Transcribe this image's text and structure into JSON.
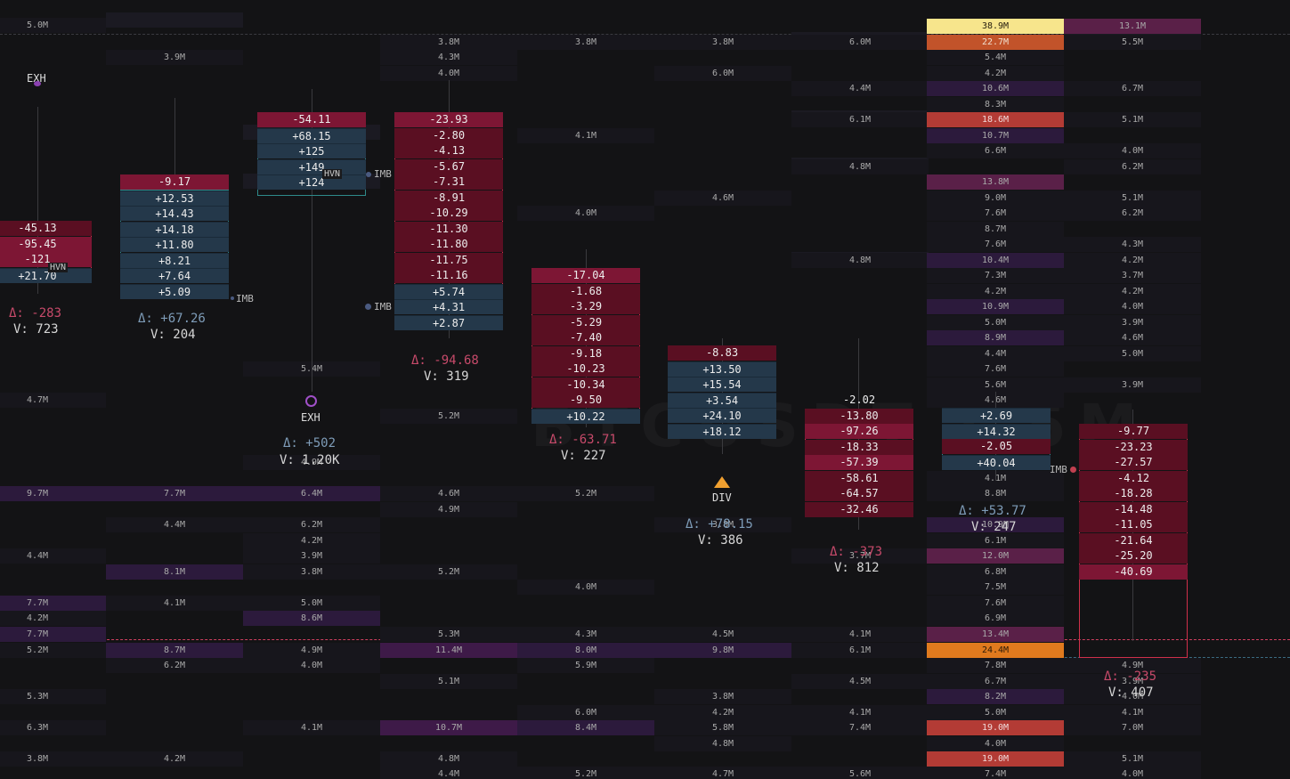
{
  "watermark": "BTCUSDT · 5M",
  "colors": {
    "background": "#131315",
    "bid": "#25384a",
    "ask_strong": "#7a1430",
    "ask": "#5e1020",
    "delta_pos": "#7e9cb8",
    "delta_neg": "#c74a6a",
    "heat_low": "#1e1a2a",
    "heat_mid": "#3d1f52",
    "heat_high": "#c2452a",
    "heat_max": "#f7e58c"
  },
  "heatmap": [
    [
      "5.0M",
      "",
      ""
    ],
    [
      "3.9M",
      "",
      ""
    ],
    [
      "3.8M 4.3M 4.0M",
      "3.8M",
      "3.8M"
    ]
  ],
  "heat_levels": {
    "col0": [
      [
        "5.0M",
        28,
        "n"
      ],
      [
        "4.7M",
        449,
        "n"
      ],
      [
        "9.7M",
        554,
        "p"
      ],
      [
        "4.4M",
        624,
        "n"
      ],
      [
        "7.7M",
        677,
        "p"
      ],
      [
        "4.2M",
        694,
        "n"
      ],
      [
        "7.7M",
        712,
        "p"
      ],
      [
        "5.2M",
        730,
        "n"
      ],
      [
        "5.3M",
        782,
        "n"
      ],
      [
        "6.3M",
        817,
        "n"
      ],
      [
        "3.8M",
        852,
        "n"
      ]
    ],
    "col1": [
      [
        "3.9M",
        64,
        "n"
      ],
      [
        "7.7M",
        554,
        "p"
      ],
      [
        "4.4M",
        589,
        "n"
      ],
      [
        "8.1M",
        642,
        "p"
      ],
      [
        "4.1M",
        677,
        "n"
      ],
      [
        "8.7M",
        730,
        "p"
      ],
      [
        "6.2M",
        747,
        "n"
      ],
      [
        "4.2M",
        852,
        "n"
      ]
    ],
    "col2": [
      [
        "5.4M",
        414,
        "n"
      ],
      [
        "4.9M",
        519,
        "n"
      ],
      [
        "6.4M",
        554,
        "p"
      ],
      [
        "6.2M",
        589,
        "n"
      ],
      [
        "4.2M",
        607,
        "n"
      ],
      [
        "3.9M",
        624,
        "n"
      ],
      [
        "3.8M",
        642,
        "n"
      ],
      [
        "5.0M",
        677,
        "n"
      ],
      [
        "8.6M",
        694,
        "p"
      ],
      [
        "4.9M",
        730,
        "n"
      ],
      [
        "4.0M",
        747,
        "n"
      ],
      [
        "4.1M",
        817,
        "n"
      ]
    ],
    "col3": [
      [
        "3.8M",
        47,
        "n"
      ],
      [
        "4.3M",
        64,
        "n"
      ],
      [
        "4.0M",
        82,
        "n"
      ],
      [
        "5.2M",
        467,
        "n"
      ],
      [
        "4.6M",
        554,
        "n"
      ],
      [
        "4.9M",
        572,
        "n"
      ],
      [
        "5.2M",
        642,
        "n"
      ],
      [
        "5.3M",
        712,
        "n"
      ],
      [
        "11.4M",
        730,
        "p2"
      ],
      [
        "5.1M",
        765,
        "n"
      ],
      [
        "10.7M",
        817,
        "p2"
      ],
      [
        "4.8M",
        852,
        "n"
      ],
      [
        "4.4M",
        869,
        "n"
      ]
    ],
    "col4": [
      [
        "3.8M",
        47,
        "n"
      ],
      [
        "4.1M",
        152,
        "n"
      ],
      [
        "4.0M",
        239,
        "n"
      ],
      [
        "5.2M",
        554,
        "n"
      ],
      [
        "4.0M",
        659,
        "n"
      ],
      [
        "4.3M",
        712,
        "n"
      ],
      [
        "8.0M",
        730,
        "p"
      ],
      [
        "5.9M",
        747,
        "n"
      ],
      [
        "6.0M",
        800,
        "n"
      ],
      [
        "8.4M",
        817,
        "p"
      ],
      [
        "5.2M",
        869,
        "n"
      ]
    ],
    "col5": [
      [
        "3.8M",
        47,
        "n"
      ],
      [
        "6.0M",
        82,
        "n"
      ],
      [
        "4.6M",
        222,
        "n"
      ],
      [
        "3.8M",
        589,
        "n"
      ],
      [
        "4.5M",
        712,
        "n"
      ],
      [
        "9.8M",
        730,
        "p"
      ],
      [
        "3.8M",
        782,
        "n"
      ],
      [
        "4.2M",
        800,
        "n"
      ],
      [
        "5.8M",
        817,
        "n"
      ],
      [
        "4.8M",
        835,
        "n"
      ],
      [
        "4.7M",
        869,
        "n"
      ]
    ],
    "col6": [
      [
        "6.0M",
        47,
        "n"
      ],
      [
        "4.4M",
        99,
        "n"
      ],
      [
        "6.1M",
        134,
        "n"
      ],
      [
        "4.8M",
        187,
        "n"
      ],
      [
        "4.8M",
        292,
        "n"
      ],
      [
        "3.7M",
        624,
        "n"
      ],
      [
        "4.1M",
        712,
        "n"
      ],
      [
        "6.1M",
        730,
        "n"
      ],
      [
        "4.5M",
        765,
        "n"
      ],
      [
        "4.1M",
        800,
        "n"
      ],
      [
        "7.4M",
        817,
        "n"
      ],
      [
        "5.6M",
        869,
        "n"
      ]
    ],
    "col7": [
      [
        "38.9M",
        29,
        "max"
      ],
      [
        "22.7M",
        47,
        "hot"
      ],
      [
        "5.4M",
        64,
        "n"
      ],
      [
        "4.2M",
        82,
        "n"
      ],
      [
        "10.6M",
        99,
        "p"
      ],
      [
        "8.3M",
        117,
        "n"
      ],
      [
        "18.6M",
        134,
        "hot2"
      ],
      [
        "10.7M",
        152,
        "p"
      ],
      [
        "6.6M",
        169,
        "n"
      ],
      [
        "13.8M",
        204,
        "p3"
      ],
      [
        "9.0M",
        222,
        "n"
      ],
      [
        "7.6M",
        239,
        "n"
      ],
      [
        "8.7M",
        257,
        "n"
      ],
      [
        "7.6M",
        274,
        "n"
      ],
      [
        "10.4M",
        292,
        "p"
      ],
      [
        "7.3M",
        309,
        "n"
      ],
      [
        "4.2M",
        327,
        "n"
      ],
      [
        "10.9M",
        344,
        "p"
      ],
      [
        "5.0M",
        362,
        "n"
      ],
      [
        "8.9M",
        379,
        "p"
      ],
      [
        "4.4M",
        397,
        "n"
      ],
      [
        "7.6M",
        414,
        "n"
      ],
      [
        "5.6M",
        432,
        "n"
      ],
      [
        "4.6M",
        449,
        "n"
      ],
      [
        "4.1M",
        537,
        "n"
      ],
      [
        "8.8M",
        554,
        "n"
      ],
      [
        "10.9M",
        589,
        "p"
      ],
      [
        "6.1M",
        607,
        "n"
      ],
      [
        "12.0M",
        624,
        "p3"
      ],
      [
        "6.8M",
        642,
        "n"
      ],
      [
        "7.5M",
        659,
        "n"
      ],
      [
        "7.6M",
        677,
        "n"
      ],
      [
        "6.9M",
        694,
        "n"
      ],
      [
        "13.4M",
        712,
        "p3"
      ],
      [
        "24.4M",
        730,
        "orange"
      ],
      [
        "7.8M",
        747,
        "n"
      ],
      [
        "6.7M",
        765,
        "n"
      ],
      [
        "8.2M",
        782,
        "p"
      ],
      [
        "5.0M",
        800,
        "n"
      ],
      [
        "19.0M",
        817,
        "hot2"
      ],
      [
        "4.0M",
        835,
        "n"
      ],
      [
        "19.0M",
        852,
        "hot2"
      ],
      [
        "7.4M",
        869,
        "n"
      ]
    ],
    "col8": [
      [
        "13.1M",
        29,
        "p3"
      ],
      [
        "5.5M",
        47,
        "n"
      ],
      [
        "6.7M",
        99,
        "n"
      ],
      [
        "5.1M",
        134,
        "n"
      ],
      [
        "4.0M",
        169,
        "n"
      ],
      [
        "6.2M",
        187,
        "n"
      ],
      [
        "5.1M",
        222,
        "n"
      ],
      [
        "6.2M",
        239,
        "n"
      ],
      [
        "4.3M",
        274,
        "n"
      ],
      [
        "4.2M",
        292,
        "n"
      ],
      [
        "3.7M",
        309,
        "n"
      ],
      [
        "4.2M",
        327,
        "n"
      ],
      [
        "4.0M",
        344,
        "n"
      ],
      [
        "3.9M",
        362,
        "n"
      ],
      [
        "4.6M",
        379,
        "n"
      ],
      [
        "5.0M",
        397,
        "n"
      ],
      [
        "3.9M",
        432,
        "n"
      ],
      [
        "4.9M",
        747,
        "n"
      ],
      [
        "3.9M",
        765,
        "n"
      ],
      [
        "4.0M",
        782,
        "n"
      ],
      [
        "4.1M",
        800,
        "n"
      ],
      [
        "7.0M",
        817,
        "n"
      ],
      [
        "5.1M",
        852,
        "n"
      ],
      [
        "4.0M",
        869,
        "n"
      ]
    ]
  },
  "candles": [
    {
      "id": "c0",
      "cells": [
        [
          "-45.13",
          "a"
        ],
        [
          "-95.45",
          "a2"
        ],
        [
          "-121",
          "a2"
        ],
        [
          "+21.70",
          "b"
        ]
      ],
      "delta": "Δ: -283",
      "volume": "V: 723",
      "dsign": "neg"
    },
    {
      "id": "c1",
      "cells": [
        [
          "-9.17",
          "a2"
        ],
        [
          "+12.53",
          "b"
        ],
        [
          "+14.43",
          "b"
        ],
        [
          "+14.18",
          "b"
        ],
        [
          "+11.80",
          "b"
        ],
        [
          "+8.21",
          "b"
        ],
        [
          "+7.64",
          "b"
        ],
        [
          "+5.09",
          "b"
        ]
      ],
      "delta": "Δ: +67.26",
      "volume": "V: 204",
      "dsign": "pos"
    },
    {
      "id": "c2",
      "cells": [
        [
          "-54.11",
          "a2"
        ],
        [
          "+68.15",
          "b"
        ],
        [
          "+125",
          "b"
        ],
        [
          "+149",
          "b"
        ],
        [
          "+124",
          "b"
        ]
      ],
      "delta": "Δ: +502",
      "volume": "V: 1.20K",
      "dsign": "pos"
    },
    {
      "id": "c3",
      "cells": [
        [
          "-23.93",
          "a2"
        ],
        [
          "-2.80",
          "a"
        ],
        [
          "-4.13",
          "a"
        ],
        [
          "-5.67",
          "a"
        ],
        [
          "-7.31",
          "a"
        ],
        [
          "-8.91",
          "a"
        ],
        [
          "-10.29",
          "a"
        ],
        [
          "-11.30",
          "a"
        ],
        [
          "-11.80",
          "a"
        ],
        [
          "-11.75",
          "a"
        ],
        [
          "-11.16",
          "a"
        ],
        [
          "+5.74",
          "b"
        ],
        [
          "+4.31",
          "b"
        ],
        [
          "+2.87",
          "b"
        ]
      ],
      "delta": "Δ: -94.68",
      "volume": "V: 319",
      "dsign": "neg"
    },
    {
      "id": "c4",
      "cells": [
        [
          "-17.04",
          "a2"
        ],
        [
          "-1.68",
          "a"
        ],
        [
          "-3.29",
          "a"
        ],
        [
          "-5.29",
          "a"
        ],
        [
          "-7.40",
          "a"
        ],
        [
          "-9.18",
          "a"
        ],
        [
          "-10.23",
          "a"
        ],
        [
          "-10.34",
          "a"
        ],
        [
          "-9.50",
          "a"
        ],
        [
          "+10.22",
          "b"
        ]
      ],
      "delta": "Δ: -63.71",
      "volume": "V: 227",
      "dsign": "neg"
    },
    {
      "id": "c5",
      "cells": [
        [
          "-8.83",
          "a"
        ],
        [
          "+13.50",
          "b"
        ],
        [
          "+15.54",
          "b"
        ],
        [
          "+3.54",
          "b"
        ],
        [
          "+24.10",
          "b"
        ],
        [
          "+18.12",
          "b"
        ]
      ],
      "delta": "Δ: +78.15",
      "volume": "V: 386",
      "dsign": "pos"
    },
    {
      "id": "c6",
      "cells": [
        [
          "-2.02",
          "none"
        ],
        [
          "-13.80",
          "a"
        ],
        [
          "-97.26",
          "a2"
        ],
        [
          "-18.33",
          "a"
        ],
        [
          "-57.39",
          "a2"
        ],
        [
          "-58.61",
          "a"
        ],
        [
          "-64.57",
          "a"
        ],
        [
          "-32.46",
          "a"
        ]
      ],
      "delta": "Δ: -373",
      "volume": "V: 812",
      "dsign": "neg"
    },
    {
      "id": "c7",
      "cells": [
        [
          "+2.69",
          "b"
        ],
        [
          "+14.32",
          "b"
        ],
        [
          "-2.05",
          "a"
        ],
        [
          "+40.04",
          "b"
        ]
      ],
      "delta": "Δ: +53.77",
      "volume": "V: 247",
      "dsign": "pos"
    },
    {
      "id": "c8",
      "cells": [
        [
          "-9.77",
          "a"
        ],
        [
          "-23.23",
          "a"
        ],
        [
          "-27.57",
          "a"
        ],
        [
          "-4.12",
          "a"
        ],
        [
          "-18.28",
          "a"
        ],
        [
          "-14.48",
          "a"
        ],
        [
          "-11.05",
          "a"
        ],
        [
          "-21.64",
          "a"
        ],
        [
          "-25.20",
          "a"
        ],
        [
          "-40.69",
          "a2"
        ]
      ],
      "delta": "Δ: -235",
      "volume": "V: 407",
      "dsign": "neg"
    }
  ],
  "markers": {
    "exh_top": "EXH",
    "exh_mid": "EXH",
    "hvn_1": "HVN",
    "hvn_2": "HVN",
    "imb_1": "IMB",
    "imb_2": "IMB",
    "imb_3": "IMB",
    "imb_4": "IMB",
    "div": "DIV"
  }
}
